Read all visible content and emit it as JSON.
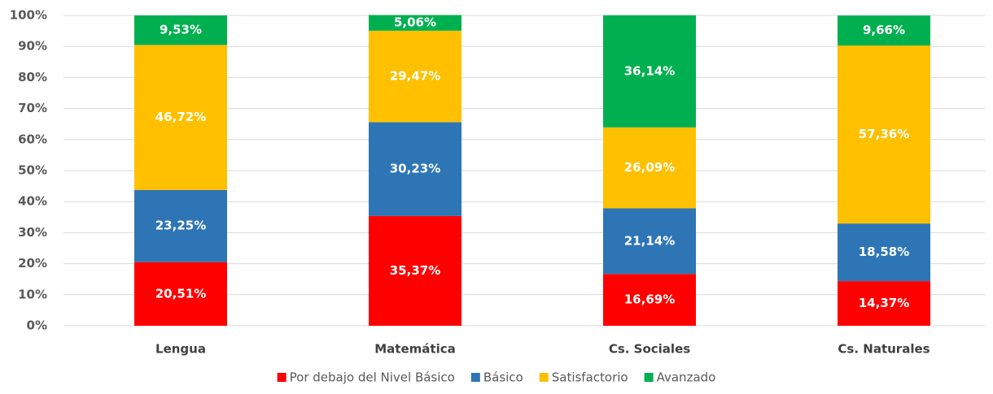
{
  "chart_data": {
    "type": "stacked_bar",
    "categories": [
      "Lengua",
      "Matemática",
      "Cs. Sociales",
      "Cs. Naturales"
    ],
    "series": [
      {
        "name": "Por debajo del Nivel Básico",
        "color": "#ff0000",
        "values": [
          20.51,
          35.37,
          16.69,
          14.37
        ],
        "value_labels": [
          "20,51%",
          "35,37%",
          "16,69%",
          "14,37%"
        ]
      },
      {
        "name": "Básico",
        "color": "#2e75b6",
        "values": [
          23.25,
          30.23,
          21.14,
          18.58
        ],
        "value_labels": [
          "23,25%",
          "30,23%",
          "21,14%",
          "18,58%"
        ]
      },
      {
        "name": "Satisfactorio",
        "color": "#ffc000",
        "values": [
          46.72,
          29.47,
          26.09,
          57.36
        ],
        "value_labels": [
          "46,72%",
          "29,47%",
          "26,09%",
          "57,36%"
        ]
      },
      {
        "name": "Avanzado",
        "color": "#00b050",
        "values": [
          9.53,
          5.06,
          36.14,
          9.66
        ],
        "value_labels": [
          "9,53%",
          "5,06%",
          "36,14%",
          "9,66%"
        ]
      }
    ],
    "ylim": [
      0,
      100
    ],
    "yticks": [
      {
        "value": 0,
        "label": "0%"
      },
      {
        "value": 10,
        "label": "10%"
      },
      {
        "value": 20,
        "label": "20%"
      },
      {
        "value": 30,
        "label": "30%"
      },
      {
        "value": 40,
        "label": "40%"
      },
      {
        "value": 50,
        "label": "50%"
      },
      {
        "value": 60,
        "label": "60%"
      },
      {
        "value": 70,
        "label": "70%"
      },
      {
        "value": 80,
        "label": "80%"
      },
      {
        "value": 90,
        "label": "90%"
      },
      {
        "value": 100,
        "label": "100%"
      }
    ],
    "grid": true,
    "legend": "bottom"
  }
}
